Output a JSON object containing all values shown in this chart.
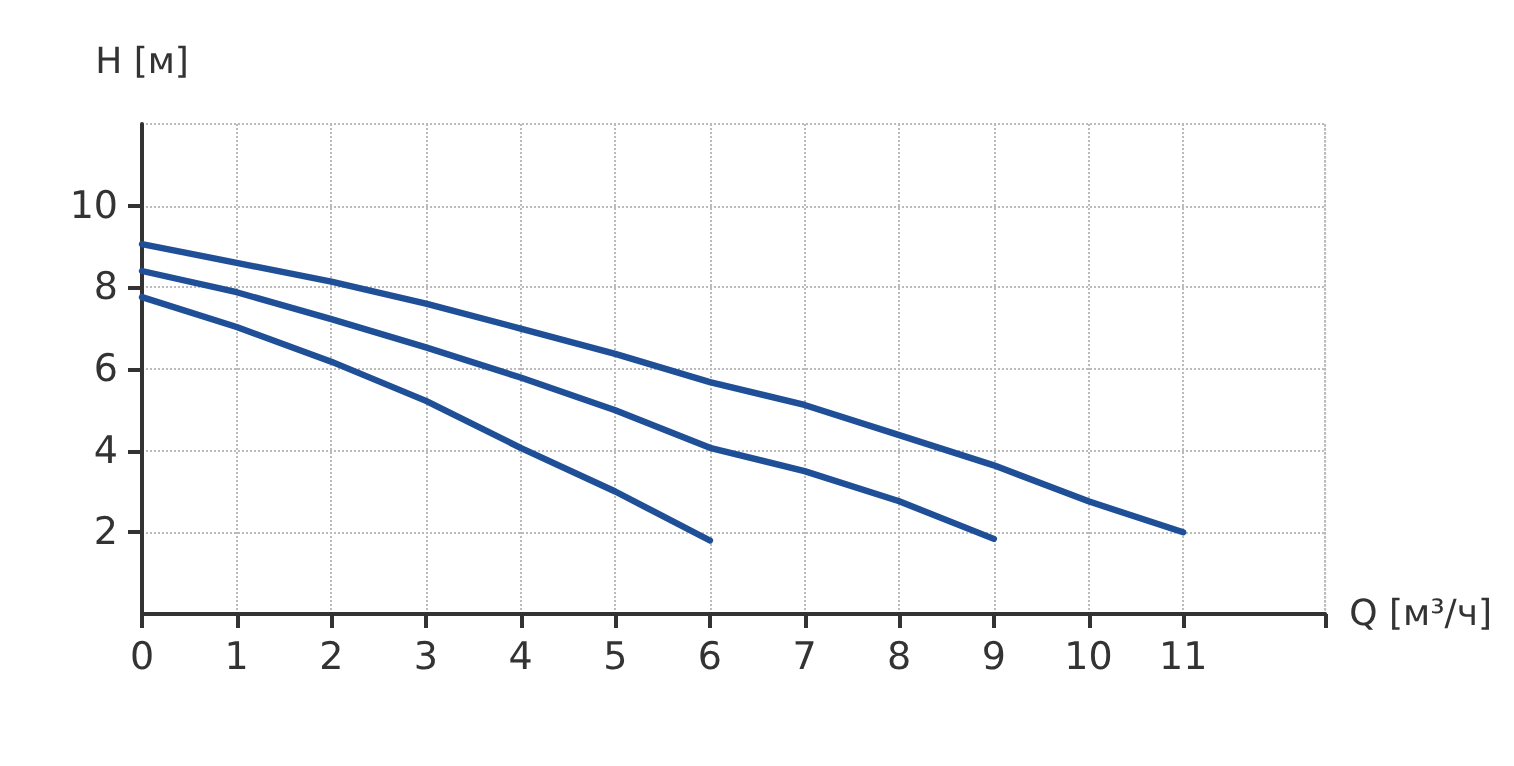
{
  "chart_data": {
    "type": "line",
    "xlabel": "Q [м³/ч]",
    "ylabel": "H [м]",
    "xlim": [
      0,
      12.5
    ],
    "ylim": [
      0,
      12
    ],
    "xticks": [
      0,
      1,
      2,
      3,
      4,
      5,
      6,
      7,
      8,
      9,
      10,
      11,
      {
        "value": 12.5,
        "label": null
      }
    ],
    "yticks": [
      2,
      4,
      6,
      8,
      10
    ],
    "grid": true,
    "marker": "none",
    "line_style": "solid",
    "series": [
      {
        "color": "#1f4f97",
        "x": [
          0,
          1,
          2,
          3,
          4,
          5,
          6,
          7,
          8,
          9,
          10,
          11
        ],
        "values": [
          9.06,
          8.6,
          8.14,
          7.6,
          6.99,
          6.37,
          5.68,
          5.12,
          4.38,
          3.64,
          2.76,
          2.0
        ]
      },
      {
        "color": "#1f4f97",
        "x": [
          0,
          1,
          2,
          3,
          4,
          5,
          6,
          7,
          8,
          9
        ],
        "values": [
          8.4,
          7.88,
          7.22,
          6.53,
          5.79,
          4.99,
          4.07,
          3.5,
          2.76,
          1.84
        ]
      },
      {
        "color": "#1f4f97",
        "x": [
          0,
          1,
          2,
          3,
          4,
          5,
          6
        ],
        "values": [
          7.76,
          7.03,
          6.18,
          5.22,
          4.07,
          3.0,
          1.8
        ]
      }
    ]
  }
}
